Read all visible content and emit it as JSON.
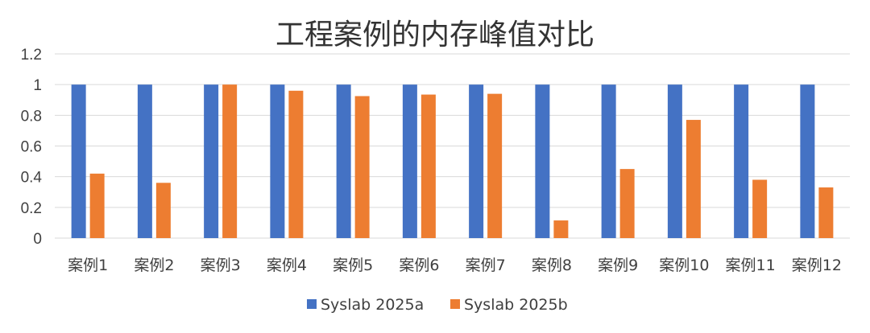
{
  "chart_data": {
    "type": "bar",
    "title": "工程案例的内存峰值对比",
    "xlabel": "",
    "ylabel": "",
    "ylim": [
      0,
      1.2
    ],
    "yticks": [
      "0",
      "0.2",
      "0.4",
      "0.6",
      "0.8",
      "1",
      "1.2"
    ],
    "ytick_values": [
      0,
      0.2,
      0.4,
      0.6,
      0.8,
      1.0,
      1.2
    ],
    "grid": true,
    "legend_position": "bottom",
    "categories": [
      "案例1",
      "案例2",
      "案例3",
      "案例4",
      "案例5",
      "案例6",
      "案例7",
      "案例8",
      "案例9",
      "案例10",
      "案例11",
      "案例12"
    ],
    "series": [
      {
        "name": "Syslab 2025a",
        "color": "#4472c4",
        "values": [
          1,
          1,
          1,
          1,
          1,
          1,
          1,
          1,
          1,
          1,
          1,
          1
        ]
      },
      {
        "name": "Syslab 2025b",
        "color": "#ed7d31",
        "values": [
          0.42,
          0.36,
          1.0,
          0.96,
          0.925,
          0.935,
          0.94,
          0.115,
          0.45,
          0.77,
          0.38,
          0.33
        ]
      }
    ]
  }
}
